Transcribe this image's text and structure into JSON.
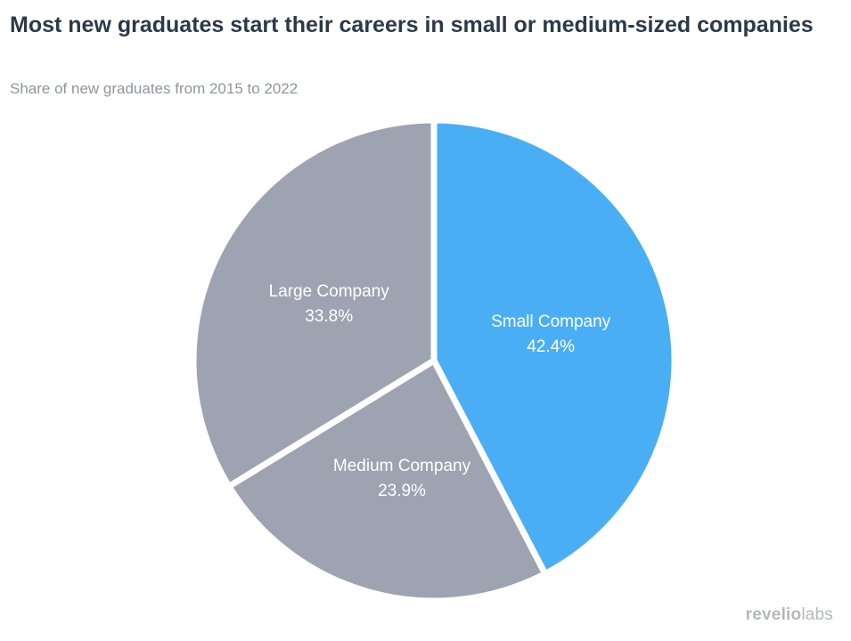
{
  "chart_data": {
    "type": "pie",
    "title": "Most new graduates start their careers in small or medium-sized companies",
    "subtitle": "Share of new graduates from 2015 to 2022",
    "slices": [
      {
        "name": "Small Company",
        "value": 42.4,
        "label": "42.4%",
        "color": "#4aaef4"
      },
      {
        "name": "Medium Company",
        "value": 23.9,
        "label": "23.9%",
        "color": "#9ea3b1"
      },
      {
        "name": "Large Company",
        "value": 33.8,
        "label": "33.8%",
        "color": "#9ea3b1"
      }
    ],
    "start_angle": "top",
    "direction": "clockwise",
    "separator_color": "#ffffff"
  },
  "brand": {
    "name": "revelio",
    "suffix": "labs"
  }
}
